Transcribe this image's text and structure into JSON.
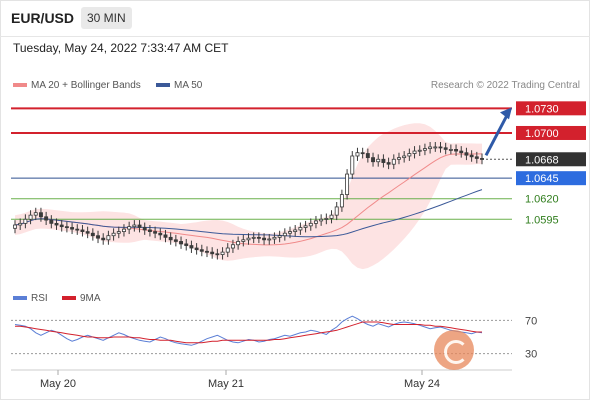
{
  "header": {
    "pair": "EUR/USD",
    "timeframe": "30 MIN",
    "timestamp": "Tuesday, May 24, 2022 7:33:47 AM CET"
  },
  "legend": {
    "ma20": "MA 20 + Bollinger Bands",
    "ma50": "MA 50",
    "credit": "Research © 2022 Trading Central",
    "rsi": "RSI",
    "rsi_ma": "9MA"
  },
  "colors": {
    "resistance": "#d3212d",
    "support_blue": "#2e4f8f",
    "support_green": "#6ab04c",
    "candle": "#3a3a3a",
    "bollinger_fill": "#fde3e3",
    "ma20": "#f08a8a",
    "ma50": "#3b5998",
    "rsi": "#5b7fd6",
    "rsi_ma": "#d3212d",
    "arrow": "#2f5aa8",
    "current_tag": "#333333",
    "blue_tag": "#2d6cdf"
  },
  "chart_data": {
    "type": "candlestick",
    "x_ticks": [
      "May 20",
      "May 21",
      "May 24"
    ],
    "ylim": [
      1.0515,
      1.0745
    ],
    "levels": [
      {
        "value": 1.073,
        "label": "1.0730",
        "kind": "resistance"
      },
      {
        "value": 1.07,
        "label": "1.0700",
        "kind": "resistance"
      },
      {
        "value": 1.0668,
        "label": "1.0668",
        "kind": "current"
      },
      {
        "value": 1.0645,
        "label": "1.0645",
        "kind": "pivot"
      },
      {
        "value": 1.062,
        "label": "1.0620",
        "kind": "support"
      },
      {
        "value": 1.0595,
        "label": "1.0595",
        "kind": "support"
      }
    ],
    "close": [
      1.0588,
      1.059,
      1.0595,
      1.06,
      1.0603,
      1.0598,
      1.0594,
      1.059,
      1.0588,
      1.0586,
      1.0585,
      1.0583,
      1.0582,
      1.058,
      1.0578,
      1.0575,
      1.0572,
      1.057,
      1.0575,
      1.0578,
      1.058,
      1.0583,
      1.0586,
      1.0588,
      1.0585,
      1.0582,
      1.058,
      1.0578,
      1.0576,
      1.0573,
      1.057,
      1.0568,
      1.0565,
      1.0563,
      1.056,
      1.0558,
      1.0556,
      1.0555,
      1.0553,
      1.0552,
      1.0555,
      1.056,
      1.0564,
      1.0568,
      1.057,
      1.0572,
      1.0573,
      1.0572,
      1.057,
      1.0571,
      1.0573,
      1.0575,
      1.0578,
      1.058,
      1.0582,
      1.0585,
      1.0587,
      1.059,
      1.0593,
      1.0595,
      1.0596,
      1.06,
      1.061,
      1.0625,
      1.065,
      1.0672,
      1.0676,
      1.0675,
      1.067,
      1.0665,
      1.0668,
      1.0664,
      1.0662,
      1.0668,
      1.067,
      1.0672,
      1.0675,
      1.0678,
      1.0679,
      1.0681,
      1.0683,
      1.0683,
      1.0682,
      1.068,
      1.068,
      1.0678,
      1.0676,
      1.0673,
      1.0671,
      1.0669,
      1.0668
    ],
    "rsi": {
      "levels": [
        70,
        30
      ],
      "level_labels": [
        "70",
        "30"
      ],
      "ylim": [
        20,
        80
      ],
      "values": [
        65,
        64,
        63,
        60,
        55,
        52,
        55,
        58,
        56,
        52,
        48,
        45,
        47,
        50,
        52,
        50,
        48,
        46,
        49,
        52,
        55,
        53,
        50,
        48,
        46,
        45,
        44,
        47,
        50,
        48,
        45,
        43,
        42,
        41,
        40,
        42,
        45,
        48,
        50,
        52,
        49,
        46,
        44,
        43,
        45,
        47,
        46,
        44,
        45,
        47,
        48,
        50,
        52,
        51,
        53,
        55,
        56,
        58,
        57,
        55,
        53,
        58,
        62,
        68,
        72,
        75,
        72,
        68,
        65,
        63,
        66,
        64,
        62,
        65,
        67,
        68,
        67,
        66,
        64,
        62,
        60,
        61,
        62,
        60,
        58,
        57,
        56,
        55,
        54,
        56,
        55
      ],
      "ma9": [
        63,
        63,
        62,
        61,
        60,
        59,
        58,
        57,
        56,
        55,
        54,
        53,
        52,
        51,
        50,
        50,
        49,
        49,
        49,
        50,
        50,
        50,
        50,
        49,
        49,
        48,
        47,
        47,
        46,
        46,
        46,
        45,
        44,
        43,
        43,
        43,
        43,
        44,
        45,
        45,
        46,
        46,
        46,
        46,
        46,
        46,
        46,
        46,
        46,
        46,
        47,
        47,
        48,
        49,
        50,
        51,
        52,
        53,
        54,
        55,
        56,
        57,
        58,
        60,
        62,
        64,
        66,
        68,
        68,
        68,
        68,
        67,
        66,
        65,
        65,
        65,
        65,
        65,
        65,
        64,
        64,
        63,
        63,
        62,
        61,
        60,
        59,
        58,
        57,
        56,
        56
      ]
    }
  }
}
